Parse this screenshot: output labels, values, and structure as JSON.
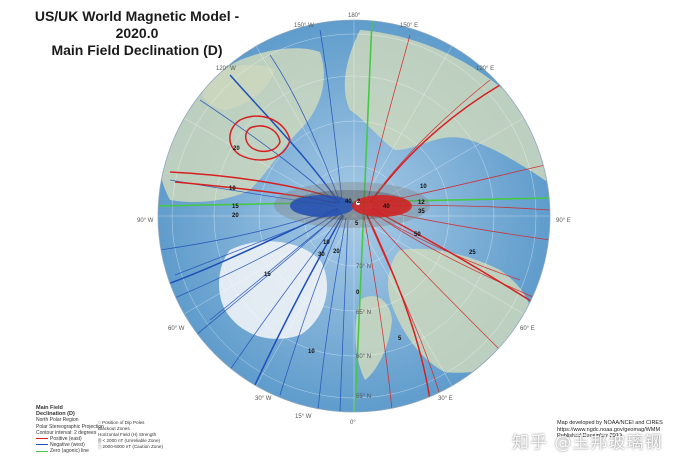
{
  "title": {
    "line1": "US/UK World Magnetic Model - 2020.0",
    "line2": "Main Field Declination (D)"
  },
  "colors": {
    "positive": "#d62020",
    "negative": "#1f4fb8",
    "zero": "#46c846",
    "ocean": "#7fb3dc",
    "land": "#cfdcc0"
  },
  "longitude_labels": {
    "top": "180°",
    "left": "90° W",
    "right": "90° E",
    "bottom": "0°",
    "upper_left_1": "150° W",
    "upper_left_2": "120° W",
    "upper_right_1": "150° E",
    "upper_right_2": "120° E",
    "lower_left_1": "60° W",
    "lower_left_2": "30° W",
    "lower_right_1": "60° E",
    "lower_right_2": "30° E",
    "lower_left_3": "15° W"
  },
  "latitude_labels": [
    "70° N",
    "65° N",
    "60° N",
    "55° N"
  ],
  "contour_labels": {
    "l10a": "10",
    "l15": "15",
    "l20": "20",
    "l20b": "20",
    "l40": "40",
    "l10b": "10",
    "l12": "12",
    "l35": "35",
    "l5": "5",
    "l50": "50",
    "lneg10": "10",
    "lneg20": "20",
    "l30": "30",
    "l40b": "40",
    "l2": "2",
    "l10c": "10",
    "l5b": "5",
    "l0": "0",
    "l15b": "15",
    "l25": "25"
  },
  "legend": {
    "heading": "Main Field",
    "heading2": "Declination (D)",
    "region": "North Polar Region",
    "projection": "Polar Stereographic Projection",
    "interval": "Contour interval: 2 degrees",
    "positive": "Positive (east)",
    "negative": "Negative (west)",
    "zero": "Zero (agonic) line"
  },
  "legend_blackout": {
    "dip": "Position of Dip Poles",
    "heading": "Blackout Zones",
    "sub": "Horizontal Field (H) Strength",
    "zone1": "< 2000 nT (Unreliable Zone)",
    "zone2": "2000-6000 nT (Caution Zone)"
  },
  "credit": {
    "line1": "Map developed by NOAA/NCEI and CIRES",
    "line2": "https://www.ngdc.noaa.gov/geomag/WMM",
    "line3": "Published December 2019"
  },
  "watermark": "知乎 @玉邦玻璃钢"
}
